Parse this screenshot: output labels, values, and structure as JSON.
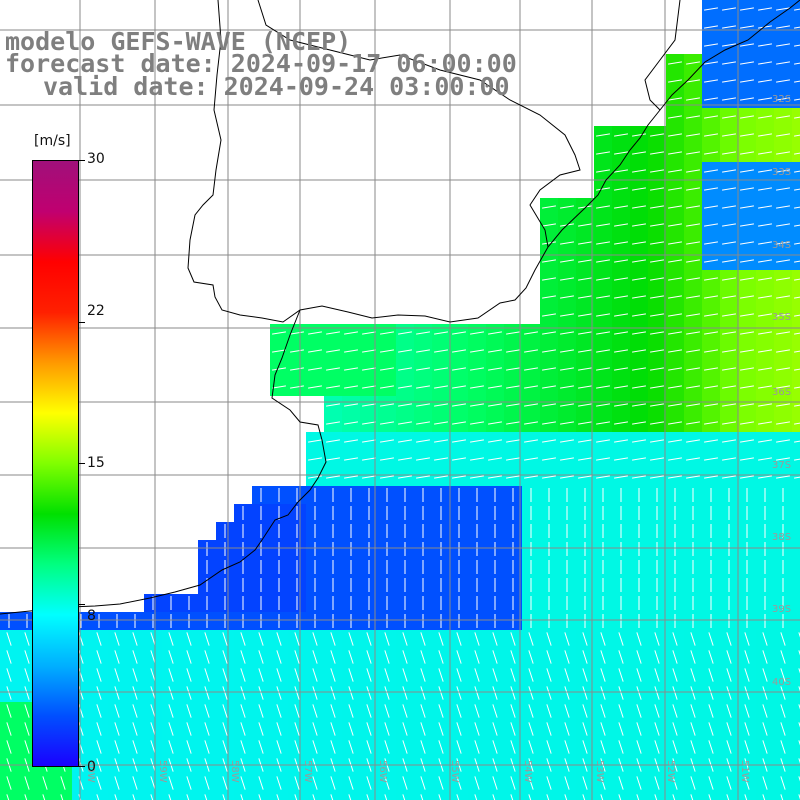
{
  "title": {
    "line1": "modelo GEFS-WAVE (NCEP)",
    "line2": "forecast date: 2024-09-17 06:00:00",
    "line3": "valid date: 2024-09-24 03:00:00"
  },
  "colorbar": {
    "unit": "[m/s]",
    "ticks": [
      "30",
      "22",
      "15",
      "8",
      "0"
    ],
    "tick_values": [
      30,
      22,
      15,
      8,
      0
    ],
    "range": [
      0,
      30
    ],
    "colors": [
      "#1a00ff",
      "#0050ff",
      "#00b0ff",
      "#00ffff",
      "#00ff80",
      "#00e000",
      "#80ff00",
      "#ffff00",
      "#ff9900",
      "#ff2000",
      "#ff0000",
      "#c00070",
      "#a0107a"
    ]
  },
  "map": {
    "lat_labels": [
      "32S",
      "33S",
      "34S",
      "35S",
      "36S",
      "37S",
      "38S",
      "39S",
      "40S"
    ],
    "lon_labels": [
      "60W",
      "59W",
      "58W",
      "57W",
      "56W",
      "55W",
      "54W",
      "53W",
      "52W",
      "51W"
    ],
    "field": "wind speed",
    "arrow_color": "#ffffff",
    "coast_color": "#000000",
    "grid_color": "#8a8a8a",
    "land_color": "#ffffff"
  }
}
